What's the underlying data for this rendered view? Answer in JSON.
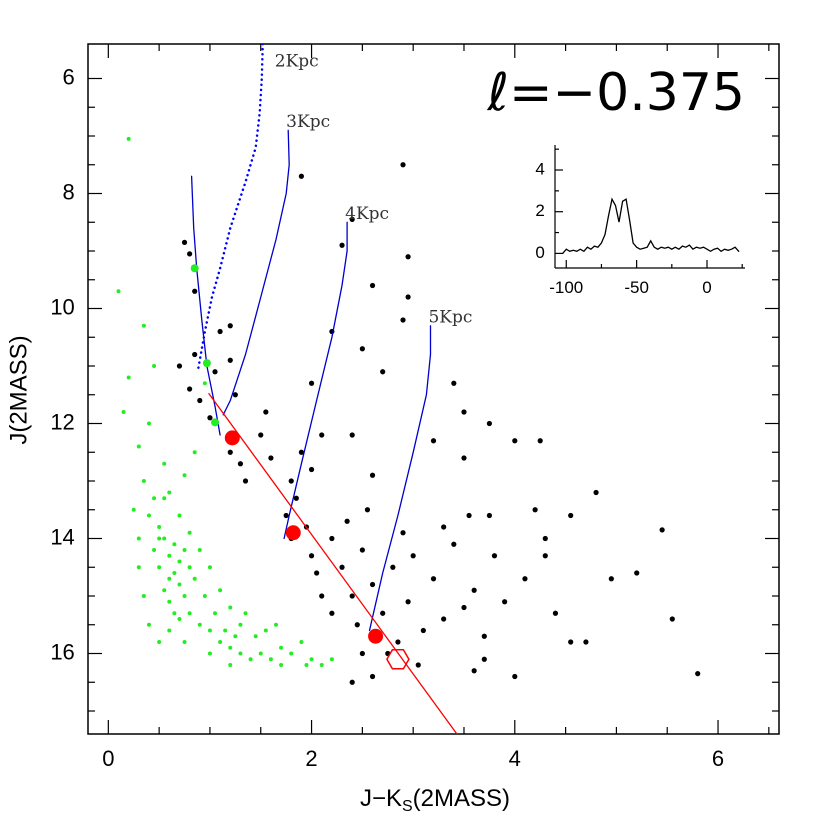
{
  "chart_data": [
    {
      "type": "scatter",
      "title": "ℓ=−0.375",
      "xlabel": "J−K",
      "xlabel_sub": "S",
      "xlabel_tail": "(2MASS)",
      "ylabel": "J(2MASS)",
      "xlim": [
        -0.2,
        6.6
      ],
      "ylim": [
        5.4,
        17.4
      ],
      "yinverted": true,
      "xticks": [
        0,
        2,
        4,
        6
      ],
      "yticks": [
        6,
        8,
        10,
        12,
        14,
        16
      ],
      "xminorticks": [
        0.5,
        1,
        1.5,
        2.5,
        3,
        3.5,
        4.5,
        5,
        5.5,
        6.5
      ],
      "yminorticks": [
        6.5,
        7,
        7.5,
        8.5,
        9,
        9.5,
        10.5,
        11,
        11.5,
        12.5,
        13,
        13.5,
        14.5,
        15,
        15.5,
        16.5,
        17
      ],
      "series": [
        {
          "color": "#22ee22",
          "marker": "dot",
          "x": [
            0.2,
            0.1,
            0.35,
            0.2,
            0.15,
            0.3,
            0.4,
            0.35,
            0.45,
            0.5,
            0.55,
            0.6,
            0.65,
            0.5,
            0.7,
            0.75,
            0.6,
            0.8,
            0.9,
            0.7,
            1.0,
            1.1,
            1.2,
            1.3,
            1.4,
            1.5,
            1.6,
            1.7,
            1.8,
            1.9,
            2.0,
            2.1,
            2.2,
            0.55,
            0.65,
            0.45,
            0.4,
            0.6,
            0.7,
            0.8,
            0.9,
            1.0,
            1.1,
            1.2,
            1.3,
            0.85,
            0.75,
            0.55,
            0.5,
            0.65,
            0.7,
            0.85,
            0.95,
            1.05,
            1.15,
            1.25,
            1.35,
            1.45,
            1.55,
            1.65,
            0.3,
            0.35,
            0.4,
            0.5,
            0.6,
            0.75,
            1.0,
            1.2,
            0.95,
            0.45,
            0.25,
            0.3,
            0.55,
            0.75,
            0.6,
            0.8,
            1.7,
            1.95
          ],
          "y": [
            7.05,
            9.7,
            10.3,
            11.2,
            11.8,
            12.4,
            12.0,
            13.0,
            13.3,
            13.8,
            14.0,
            14.3,
            14.6,
            14.5,
            14.8,
            15.0,
            15.1,
            15.3,
            15.5,
            15.4,
            15.6,
            15.8,
            15.9,
            16.0,
            16.1,
            16.0,
            16.1,
            15.9,
            16.0,
            15.8,
            16.1,
            16.2,
            16.1,
            14.9,
            15.3,
            14.2,
            13.6,
            13.2,
            13.6,
            13.9,
            14.2,
            14.5,
            14.9,
            15.2,
            15.5,
            12.5,
            12.9,
            12.7,
            14.0,
            14.1,
            14.4,
            14.7,
            15.0,
            15.3,
            15.6,
            15.7,
            15.3,
            15.7,
            15.6,
            15.5,
            14.5,
            15.0,
            15.5,
            15.8,
            15.6,
            15.8,
            16.0,
            16.2,
            11.3,
            11.0,
            13.5,
            14.0,
            13.3,
            14.2,
            14.7,
            14.5,
            16.2,
            16.2
          ]
        },
        {
          "color": "#000000",
          "marker": "dot",
          "x": [
            0.75,
            0.8,
            0.85,
            0.85,
            0.7,
            0.8,
            0.9,
            1.05,
            1.2,
            1.1,
            1.2,
            1.25,
            1.0,
            1.2,
            1.3,
            1.35,
            1.5,
            1.55,
            1.6,
            1.8,
            1.9,
            2.0,
            1.9,
            1.75,
            1.8,
            1.85,
            1.95,
            2.0,
            2.05,
            2.1,
            2.2,
            2.2,
            2.3,
            2.35,
            2.4,
            2.45,
            2.5,
            2.5,
            2.55,
            2.6,
            2.7,
            2.75,
            2.8,
            2.85,
            2.9,
            2.95,
            3.0,
            3.05,
            3.1,
            3.2,
            3.3,
            3.3,
            3.4,
            3.5,
            3.55,
            3.6,
            3.7,
            3.75,
            3.8,
            3.9,
            4.0,
            4.1,
            4.2,
            4.3,
            4.4,
            4.55,
            4.7,
            4.95,
            5.2,
            5.45,
            5.55,
            5.8,
            4.8,
            4.55,
            4.25,
            4.0,
            3.75,
            3.5,
            3.4,
            3.5,
            3.2,
            2.95,
            2.9,
            2.95,
            2.6,
            2.4,
            2.3,
            2.2,
            2.7,
            2.5,
            2.0,
            2.1,
            2.6,
            2.4,
            2.9,
            2.6,
            2.4,
            3.6,
            4.3,
            3.7
          ],
          "y": [
            8.85,
            9.05,
            9.7,
            10.8,
            11.0,
            11.4,
            11.6,
            11.1,
            10.9,
            10.4,
            10.3,
            11.5,
            11.9,
            12.5,
            12.7,
            13.0,
            12.2,
            11.8,
            12.6,
            13.0,
            12.5,
            12.8,
            7.7,
            13.6,
            14.0,
            13.3,
            13.8,
            14.3,
            14.6,
            15.0,
            15.3,
            14.0,
            14.5,
            13.7,
            15.0,
            15.5,
            14.2,
            16.0,
            13.5,
            14.8,
            15.3,
            16.0,
            14.5,
            15.8,
            13.9,
            15.1,
            14.3,
            16.2,
            15.6,
            14.7,
            15.4,
            13.8,
            14.1,
            15.2,
            13.6,
            14.9,
            15.7,
            13.6,
            14.3,
            15.1,
            16.4,
            14.7,
            13.5,
            14.3,
            15.3,
            15.8,
            15.8,
            14.7,
            14.6,
            13.85,
            15.4,
            16.35,
            13.2,
            13.6,
            12.3,
            12.3,
            12.0,
            11.8,
            11.3,
            12.6,
            12.3,
            9.8,
            10.2,
            9.1,
            9.6,
            8.45,
            8.9,
            10.4,
            11.1,
            10.7,
            11.3,
            12.2,
            12.9,
            12.2,
            7.5,
            16.4,
            16.5,
            16.3,
            14.0,
            16.1
          ]
        },
        {
          "color": "#0000cc",
          "marker": "line",
          "style": "solid",
          "x": [
            0.82,
            0.84,
            0.87,
            0.92,
            0.97,
            1.05,
            1.1
          ],
          "y": [
            7.7,
            8.6,
            9.3,
            10.2,
            11.0,
            11.7,
            12.2
          ]
        },
        {
          "name": "2Kpc",
          "color": "#0000ff",
          "marker": "line",
          "style": "dotted",
          "x": [
            1.52,
            1.51,
            1.49,
            1.45,
            1.35,
            1.2,
            1.1,
            1.02,
            0.95,
            0.88
          ],
          "y": [
            5.4,
            6.0,
            6.6,
            7.2,
            7.8,
            8.6,
            9.3,
            9.8,
            10.4,
            11.1
          ]
        },
        {
          "name": "3Kpc",
          "color": "#0000cc",
          "marker": "line",
          "style": "solid",
          "x": [
            1.77,
            1.78,
            1.75,
            1.65,
            1.5,
            1.35,
            1.2,
            1.13
          ],
          "y": [
            6.9,
            7.5,
            8.0,
            8.8,
            9.8,
            10.8,
            11.6,
            11.85
          ]
        },
        {
          "name": "4Kpc",
          "color": "#0000cc",
          "marker": "line",
          "style": "solid",
          "x": [
            2.35,
            2.35,
            2.3,
            2.2,
            2.05,
            1.9,
            1.78,
            1.73
          ],
          "y": [
            8.5,
            9.0,
            9.6,
            10.5,
            11.6,
            12.7,
            13.6,
            14.0
          ]
        },
        {
          "name": "5Kpc",
          "color": "#0000cc",
          "marker": "line",
          "style": "solid",
          "x": [
            3.17,
            3.17,
            3.13,
            3.0,
            2.85,
            2.7,
            2.57
          ],
          "y": [
            10.3,
            10.8,
            11.5,
            12.5,
            13.6,
            14.6,
            15.6
          ]
        },
        {
          "color": "#22ee22",
          "marker": "disc-small",
          "x": [
            0.85,
            0.97,
            1.05
          ],
          "y": [
            9.3,
            10.95,
            11.98
          ]
        },
        {
          "color": "#ff0000",
          "marker": "line",
          "style": "solid",
          "x": [
            0.99,
            3.43
          ],
          "y": [
            11.48,
            17.4
          ]
        },
        {
          "color": "#ff0000",
          "marker": "disc",
          "x": [
            1.22,
            1.82,
            2.63
          ],
          "y": [
            12.25,
            13.9,
            15.7
          ]
        },
        {
          "color": "#ff0000",
          "marker": "hexagon",
          "x": [
            2.85
          ],
          "y": [
            16.1
          ]
        }
      ]
    },
    {
      "type": "line",
      "xlim": [
        -108,
        27
      ],
      "ylim": [
        -0.7,
        5.2
      ],
      "xticks": [
        -100,
        -50,
        0
      ],
      "yticks": [
        0,
        2,
        4
      ],
      "xminorticks": [
        -75,
        -25,
        25
      ],
      "yminorticks": [
        1,
        3,
        5
      ],
      "series": [
        {
          "color": "#000000",
          "x": [
            -102.5,
            -100,
            -97.5,
            -95,
            -92.5,
            -90,
            -87.5,
            -85,
            -82.5,
            -80,
            -77.5,
            -75,
            -72.5,
            -70,
            -67.5,
            -65,
            -62.5,
            -60,
            -57.5,
            -55,
            -52.5,
            -50,
            -47.5,
            -45,
            -42.5,
            -40,
            -37.5,
            -35,
            -32.5,
            -30,
            -27.5,
            -25,
            -22.5,
            -20,
            -17.5,
            -15,
            -12.5,
            -10,
            -7.5,
            -5,
            -2.5,
            0,
            2.5,
            5,
            7.5,
            10,
            12.5,
            15,
            17.5,
            20,
            22.5
          ],
          "y": [
            0.0,
            0.2,
            0.1,
            0.15,
            0.1,
            0.2,
            0.1,
            0.3,
            0.2,
            0.35,
            0.3,
            0.5,
            0.9,
            1.8,
            2.6,
            2.3,
            1.5,
            2.5,
            2.6,
            1.6,
            0.5,
            0.3,
            0.2,
            0.25,
            0.3,
            0.6,
            0.3,
            0.2,
            0.3,
            0.25,
            0.3,
            0.2,
            0.3,
            0.2,
            0.35,
            0.3,
            0.4,
            0.2,
            0.3,
            0.25,
            0.3,
            0.2,
            0.1,
            0.2,
            0.25,
            0.1,
            0.2,
            0.15,
            0.2,
            0.3,
            0.1
          ]
        }
      ]
    }
  ]
}
